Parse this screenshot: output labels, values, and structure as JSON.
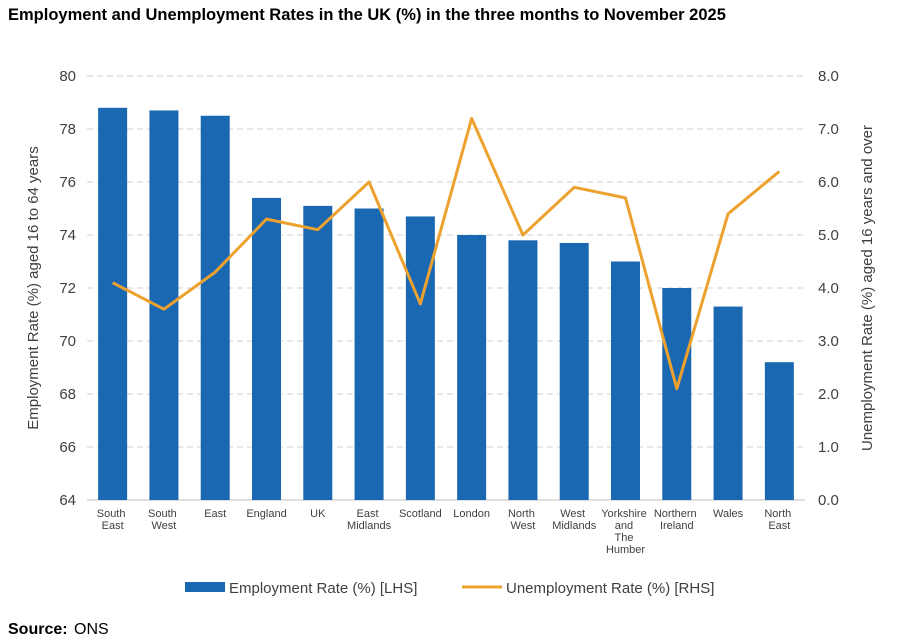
{
  "chart_data": {
    "type": "bar_line",
    "title": "Employment and Unemployment Rates in the UK (%) in the three months to November 2025",
    "categories": [
      "South East",
      "South West",
      "East",
      "England",
      "UK",
      "East Midlands",
      "Scotland",
      "London",
      "North West",
      "West Midlands",
      "Yorkshire and The Humber",
      "Northern Ireland",
      "Wales",
      "North East"
    ],
    "series": [
      {
        "name": "Employment Rate (%) [LHS]",
        "color": "#1a67b2",
        "type": "bar",
        "values": [
          78.8,
          78.7,
          78.5,
          75.4,
          75.1,
          75.0,
          74.7,
          74.0,
          73.8,
          73.7,
          73.0,
          72.0,
          71.3,
          69.2
        ]
      },
      {
        "name": "Unemployment Rate (%) [RHS]",
        "color": "#eda12e",
        "type": "line",
        "axis": "y2",
        "values": [
          4.1,
          3.6,
          4.3,
          5.3,
          5.1,
          6.0,
          3.7,
          7.2,
          5.0,
          5.9,
          5.7,
          2.1,
          5.4,
          6.2
        ]
      }
    ],
    "ylabel": "Employment Rate (%) aged 16 to 64 years",
    "y2label": "Unemployment Rate (%) aged 16 years and over",
    "ylim": [
      64,
      80
    ],
    "yticks": [
      64,
      66,
      68,
      70,
      72,
      74,
      76,
      78,
      80
    ],
    "y2lim": [
      0,
      8
    ],
    "y2ticks": [
      {
        "value": 0,
        "label": "0.0"
      },
      {
        "value": 1,
        "label": "1.0"
      },
      {
        "value": 2,
        "label": "2.0"
      },
      {
        "value": 3,
        "label": "3.0"
      },
      {
        "value": 4,
        "label": "4.0"
      },
      {
        "value": 5,
        "label": "5.0"
      },
      {
        "value": 6,
        "label": "6.0"
      },
      {
        "value": 7,
        "label": "7.0"
      },
      {
        "value": 8,
        "label": "8.0"
      }
    ],
    "grid": true,
    "legend": "bottom",
    "source_label": "Source:",
    "source": "ONS"
  }
}
